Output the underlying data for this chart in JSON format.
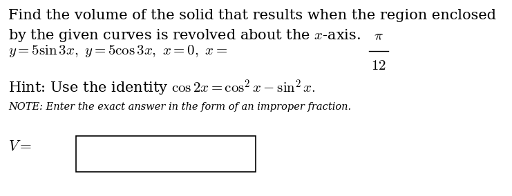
{
  "bg_color": "#ffffff",
  "line1": "Find the volume of the solid that results when the region enclosed",
  "line2": "by the given curves is revolved about the $x$-axis.",
  "line3_prefix": "$y = 5\\sin 3x,\\ y = 5\\cos 3x,\\ x = 0,\\ x = $",
  "pi_num": "$\\pi$",
  "twelve_den": "$12$",
  "line4": "Hint: Use the identity $\\cos 2x = \\cos^2 x - \\sin^2 x.$",
  "note": "NOTE: Enter the exact answer in the form of an improper fraction.",
  "v_label": "$V =$",
  "main_fontsize": 15.0,
  "note_fontsize": 10.5,
  "v_fontsize": 15.5
}
